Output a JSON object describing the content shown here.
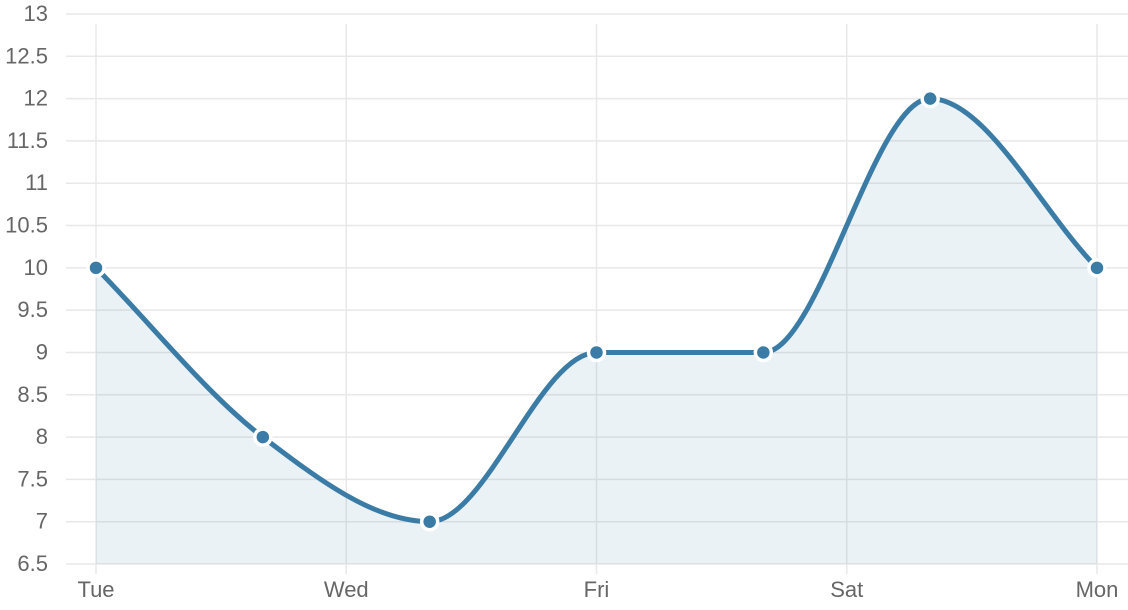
{
  "chart_data": {
    "type": "area",
    "x_ticks": [
      "Tue",
      "Wed",
      "Fri",
      "Sat",
      "Mon"
    ],
    "x_tick_positions": [
      0,
      1.5,
      3,
      4.5,
      6
    ],
    "x": [
      0,
      1,
      2,
      3,
      4,
      5,
      6
    ],
    "values": [
      10,
      8,
      7,
      9,
      9,
      12,
      10
    ],
    "ylim": [
      6.5,
      13
    ],
    "y_ticks": [
      "13",
      "12.5",
      "12",
      "11.5",
      "11",
      "10.5",
      "10",
      "9.5",
      "9",
      "8.5",
      "8",
      "7.5",
      "7",
      "6.5"
    ],
    "grid": true,
    "smooth": true,
    "colors": {
      "line": "#3a7ca5",
      "grid": "#e8e8e8",
      "text": "#666666"
    }
  }
}
